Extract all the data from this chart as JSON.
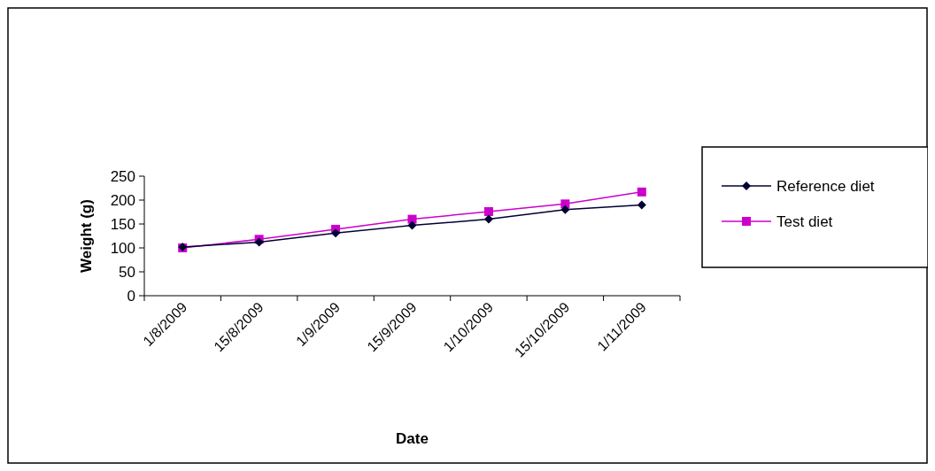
{
  "chart_data": {
    "type": "line",
    "xlabel": "Date",
    "ylabel": "Weight (g)",
    "categories": [
      "1/8/2009",
      "15/8/2009",
      "1/9/2009",
      "15/9/2009",
      "1/10/2009",
      "15/10/2009",
      "1/11/2009"
    ],
    "series": [
      {
        "name": "Reference diet",
        "color": "#000033",
        "marker": "diamond",
        "values": [
          102,
          112,
          131,
          147,
          160,
          180,
          190
        ]
      },
      {
        "name": "Test diet",
        "color": "#cc00cc",
        "marker": "square",
        "values": [
          100,
          118,
          139,
          160,
          176,
          192,
          217
        ]
      }
    ],
    "ylim": [
      0,
      250
    ],
    "yticks": [
      0,
      50,
      100,
      150,
      200,
      250
    ],
    "grid": false,
    "legend": "right",
    "line_style": "solid"
  }
}
